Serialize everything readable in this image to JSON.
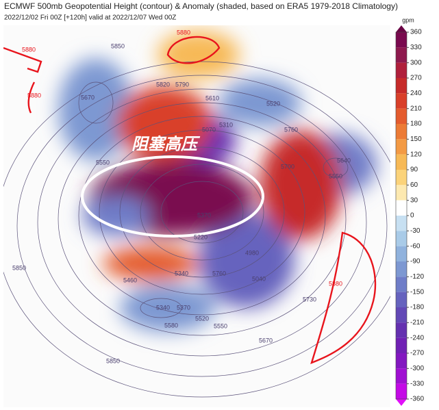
{
  "header": {
    "title": "ECMWF 500mb Geopotential Height (contour) & Anomaly (shaded, based on ERA5 1979-2018 Climatology)",
    "subtitle": "2022/12/02 Fri 00Z [+120h] valid at 2022/12/07 Wed 00Z"
  },
  "annotation": "阻塞高压",
  "colorbar": {
    "unit": "gpm",
    "ticks": [
      360,
      330,
      300,
      270,
      240,
      210,
      180,
      150,
      120,
      90,
      60,
      30,
      0,
      -30,
      -60,
      -90,
      -120,
      -150,
      -180,
      -210,
      -240,
      -270,
      -300,
      -330,
      -360
    ]
  },
  "contour_labels": [
    "5880",
    "5880",
    "5880",
    "5850",
    "5820",
    "5790",
    "5670",
    "5610",
    "5520",
    "5760",
    "5550",
    "5070",
    "5310",
    "5700",
    "5640",
    "5550",
    "5370",
    "5220",
    "4980",
    "5040",
    "5760",
    "5460",
    "5340",
    "5340",
    "5370",
    "5520",
    "5550",
    "5580",
    "5670",
    "5850",
    "5850",
    "5730",
    "5880"
  ]
}
